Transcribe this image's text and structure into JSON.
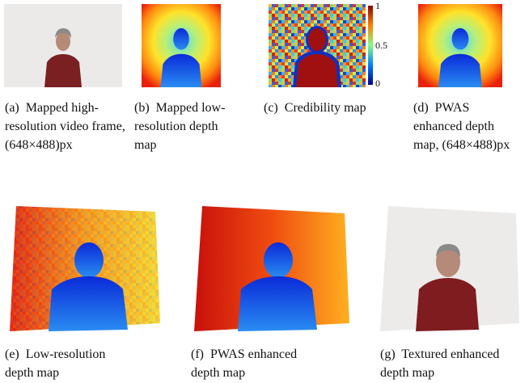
{
  "figure": {
    "panels": [
      {
        "label": "(a)",
        "caption": "Mapped high-resolution video frame, (648×488)px"
      },
      {
        "label": "(b)",
        "caption": "Mapped low-resolution depth map"
      },
      {
        "label": "(c)",
        "caption": "Credibility map"
      },
      {
        "label": "(d)",
        "caption": "PWAS enhanced depth map, (648×488)px"
      },
      {
        "label": "(e)",
        "caption": "Low-resolution depth map"
      },
      {
        "label": "(f)",
        "caption": "PWAS enhanced depth map"
      },
      {
        "label": "(g)",
        "caption": "Textured enhanced depth map"
      }
    ],
    "colorbar_ticks": [
      "1",
      "0.5",
      "0"
    ]
  }
}
